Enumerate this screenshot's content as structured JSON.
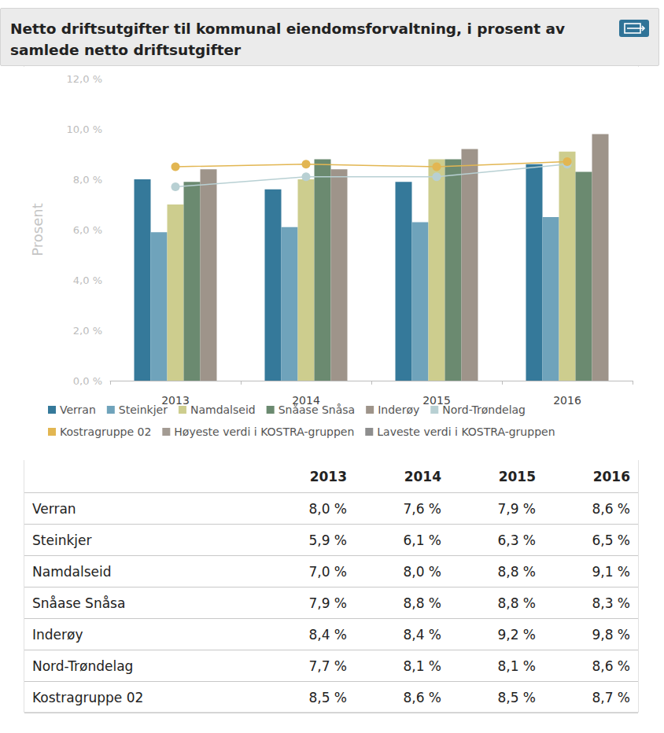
{
  "chart_data": {
    "type": "bar",
    "title": "Netto driftsutgifter til kommunal eiendomsforvaltning, i prosent av samlede netto driftsutgifter",
    "y_label": "Prosent",
    "categories": [
      "2013",
      "2014",
      "2015",
      "2016"
    ],
    "series": [
      {
        "name": "Verran",
        "color": "#35799a",
        "type": "bar",
        "values": [
          8.0,
          7.6,
          7.9,
          8.6
        ]
      },
      {
        "name": "Steinkjer",
        "color": "#6fa3bb",
        "type": "bar",
        "values": [
          5.9,
          6.1,
          6.3,
          6.5
        ]
      },
      {
        "name": "Namdalseid",
        "color": "#cdcd8e",
        "type": "bar",
        "values": [
          7.0,
          8.0,
          8.8,
          9.1
        ]
      },
      {
        "name": "Snåase Snåsa",
        "color": "#6b8a70",
        "type": "bar",
        "values": [
          7.9,
          8.8,
          8.8,
          8.3
        ]
      },
      {
        "name": "Inderøy",
        "color": "#9e948a",
        "type": "bar",
        "values": [
          8.4,
          8.4,
          9.2,
          9.8
        ]
      },
      {
        "name": "Nord-Trøndelag",
        "color": "#b8d0d3",
        "type": "line",
        "marker": "circle",
        "values": [
          7.7,
          8.1,
          8.1,
          8.6
        ]
      },
      {
        "name": "Kostragruppe 02",
        "color": "#e2b652",
        "type": "line",
        "marker": "circle",
        "values": [
          8.5,
          8.6,
          8.5,
          8.7
        ]
      },
      {
        "name": "Høyeste verdi i KOSTRA-gruppen",
        "color": "#a39b93",
        "type": "line",
        "marker": "circle",
        "values": [
          null,
          null,
          null,
          null
        ]
      },
      {
        "name": "Laveste verdi i KOSTRA-gruppen",
        "color": "#8e8e8e",
        "type": "line",
        "marker": "circle",
        "values": [
          null,
          null,
          null,
          null
        ]
      }
    ],
    "ylim": [
      0,
      12
    ],
    "yticks": [
      {
        "value": 0,
        "label": "0,0 %"
      },
      {
        "value": 2,
        "label": "2,0 %"
      },
      {
        "value": 4,
        "label": "4,0 %"
      },
      {
        "value": 6,
        "label": "6,0 %"
      },
      {
        "value": 8,
        "label": "8,0 %"
      },
      {
        "value": 10,
        "label": "10,0 %"
      },
      {
        "value": 12,
        "label": "12,0 %"
      }
    ],
    "grid": false,
    "legend": "bottom"
  },
  "table": {
    "columns": [
      "2013",
      "2014",
      "2015",
      "2016"
    ],
    "rows": [
      {
        "label": "Verran",
        "cells": [
          "8,0 %",
          "7,6 %",
          "7,9 %",
          "8,6 %"
        ]
      },
      {
        "label": "Steinkjer",
        "cells": [
          "5,9 %",
          "6,1 %",
          "6,3 %",
          "6,5 %"
        ]
      },
      {
        "label": "Namdalseid",
        "cells": [
          "7,0 %",
          "8,0 %",
          "8,8 %",
          "9,1 %"
        ]
      },
      {
        "label": "Snåase Snåsa",
        "cells": [
          "7,9 %",
          "8,8 %",
          "8,8 %",
          "8,3 %"
        ]
      },
      {
        "label": "Inderøy",
        "cells": [
          "8,4 %",
          "8,4 %",
          "9,2 %",
          "9,8 %"
        ]
      },
      {
        "label": "Nord-Trøndelag",
        "cells": [
          "7,7 %",
          "8,1 %",
          "8,1 %",
          "8,6 %"
        ]
      },
      {
        "label": "Kostragruppe 02",
        "cells": [
          "8,5 %",
          "8,6 %",
          "8,5 %",
          "8,7 %"
        ]
      }
    ]
  }
}
